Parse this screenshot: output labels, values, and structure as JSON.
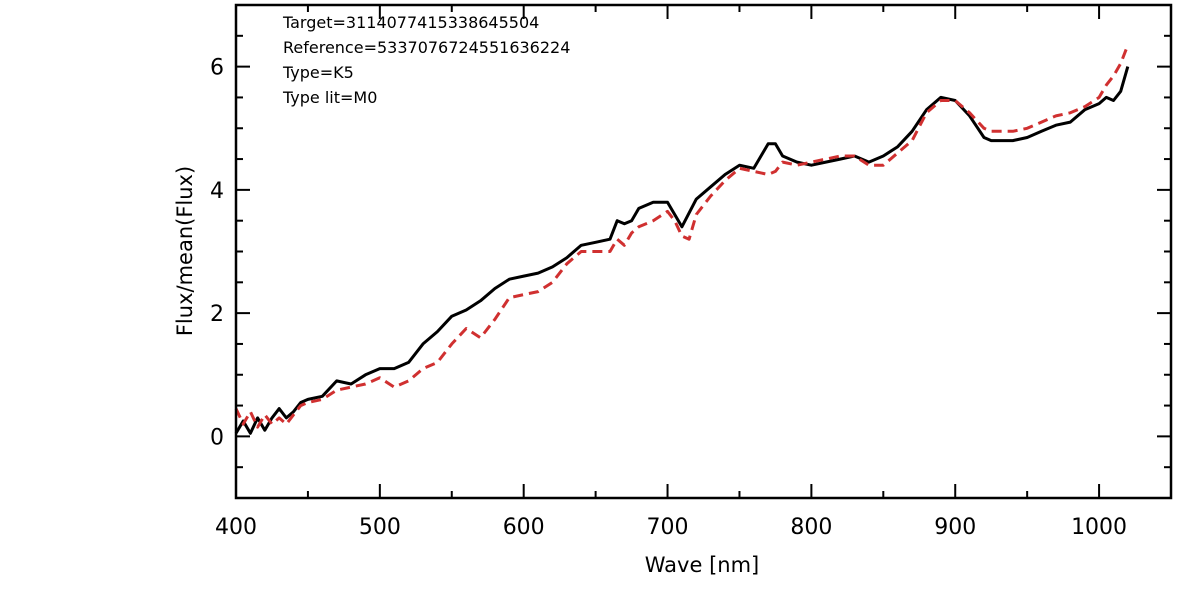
{
  "chart_data": {
    "type": "line",
    "title": "",
    "xlabel": "Wave [nm]",
    "ylabel": "Flux/mean(Flux)",
    "xlim": [
      400,
      1050
    ],
    "ylim": [
      -1,
      7
    ],
    "x_ticks": [
      400,
      500,
      600,
      700,
      800,
      900,
      1000
    ],
    "y_ticks": [
      0,
      2,
      4,
      6
    ],
    "grid": false,
    "legend": "none",
    "annotations": [
      "Target=3114077415338645504",
      "Reference=5337076724551636224",
      "Type=K5",
      "Type lit=M0"
    ],
    "series": [
      {
        "style": "solid",
        "color": "#000000",
        "x": [
          400,
          405,
          410,
          415,
          420,
          425,
          430,
          435,
          440,
          445,
          450,
          460,
          470,
          480,
          490,
          500,
          510,
          520,
          530,
          540,
          550,
          560,
          570,
          580,
          590,
          600,
          610,
          620,
          630,
          640,
          650,
          660,
          665,
          670,
          675,
          680,
          690,
          700,
          705,
          710,
          720,
          730,
          740,
          750,
          760,
          765,
          770,
          775,
          780,
          790,
          800,
          810,
          820,
          830,
          840,
          850,
          860,
          870,
          880,
          890,
          900,
          910,
          920,
          925,
          930,
          940,
          950,
          960,
          970,
          980,
          990,
          1000,
          1005,
          1010,
          1015,
          1020
        ],
        "y": [
          0.05,
          0.25,
          0.05,
          0.3,
          0.1,
          0.3,
          0.45,
          0.3,
          0.4,
          0.55,
          0.6,
          0.65,
          0.9,
          0.85,
          1.0,
          1.1,
          1.1,
          1.2,
          1.5,
          1.7,
          1.95,
          2.05,
          2.2,
          2.4,
          2.55,
          2.6,
          2.65,
          2.75,
          2.9,
          3.1,
          3.15,
          3.2,
          3.5,
          3.45,
          3.5,
          3.7,
          3.8,
          3.8,
          3.6,
          3.4,
          3.85,
          4.05,
          4.25,
          4.4,
          4.35,
          4.55,
          4.75,
          4.75,
          4.55,
          4.45,
          4.4,
          4.45,
          4.5,
          4.55,
          4.45,
          4.55,
          4.7,
          4.95,
          5.3,
          5.5,
          5.45,
          5.2,
          4.85,
          4.8,
          4.8,
          4.8,
          4.85,
          4.95,
          5.05,
          5.1,
          5.3,
          5.4,
          5.5,
          5.45,
          5.6,
          6.0
        ]
      },
      {
        "style": "dashed",
        "color": "#d03030",
        "x": [
          400,
          405,
          410,
          415,
          420,
          425,
          430,
          435,
          440,
          445,
          450,
          460,
          470,
          480,
          490,
          500,
          510,
          520,
          530,
          540,
          550,
          560,
          570,
          580,
          590,
          600,
          610,
          620,
          630,
          640,
          650,
          660,
          665,
          670,
          675,
          680,
          690,
          700,
          705,
          710,
          715,
          720,
          730,
          740,
          750,
          760,
          770,
          775,
          780,
          790,
          800,
          810,
          820,
          830,
          840,
          850,
          860,
          870,
          880,
          890,
          900,
          910,
          920,
          925,
          930,
          940,
          950,
          960,
          970,
          980,
          990,
          1000,
          1005,
          1010,
          1015,
          1020
        ],
        "y": [
          0.45,
          0.2,
          0.4,
          0.15,
          0.35,
          0.2,
          0.3,
          0.2,
          0.35,
          0.5,
          0.55,
          0.6,
          0.75,
          0.8,
          0.85,
          0.95,
          0.8,
          0.9,
          1.1,
          1.2,
          1.5,
          1.75,
          1.6,
          1.9,
          2.25,
          2.3,
          2.35,
          2.5,
          2.8,
          3.0,
          3.0,
          3.0,
          3.2,
          3.1,
          3.3,
          3.4,
          3.5,
          3.65,
          3.5,
          3.25,
          3.2,
          3.6,
          3.9,
          4.15,
          4.35,
          4.3,
          4.25,
          4.3,
          4.45,
          4.4,
          4.45,
          4.5,
          4.55,
          4.55,
          4.4,
          4.4,
          4.6,
          4.8,
          5.25,
          5.45,
          5.45,
          5.25,
          5.0,
          4.95,
          4.95,
          4.95,
          5.0,
          5.1,
          5.2,
          5.25,
          5.35,
          5.5,
          5.7,
          5.85,
          6.05,
          6.35
        ]
      }
    ]
  }
}
